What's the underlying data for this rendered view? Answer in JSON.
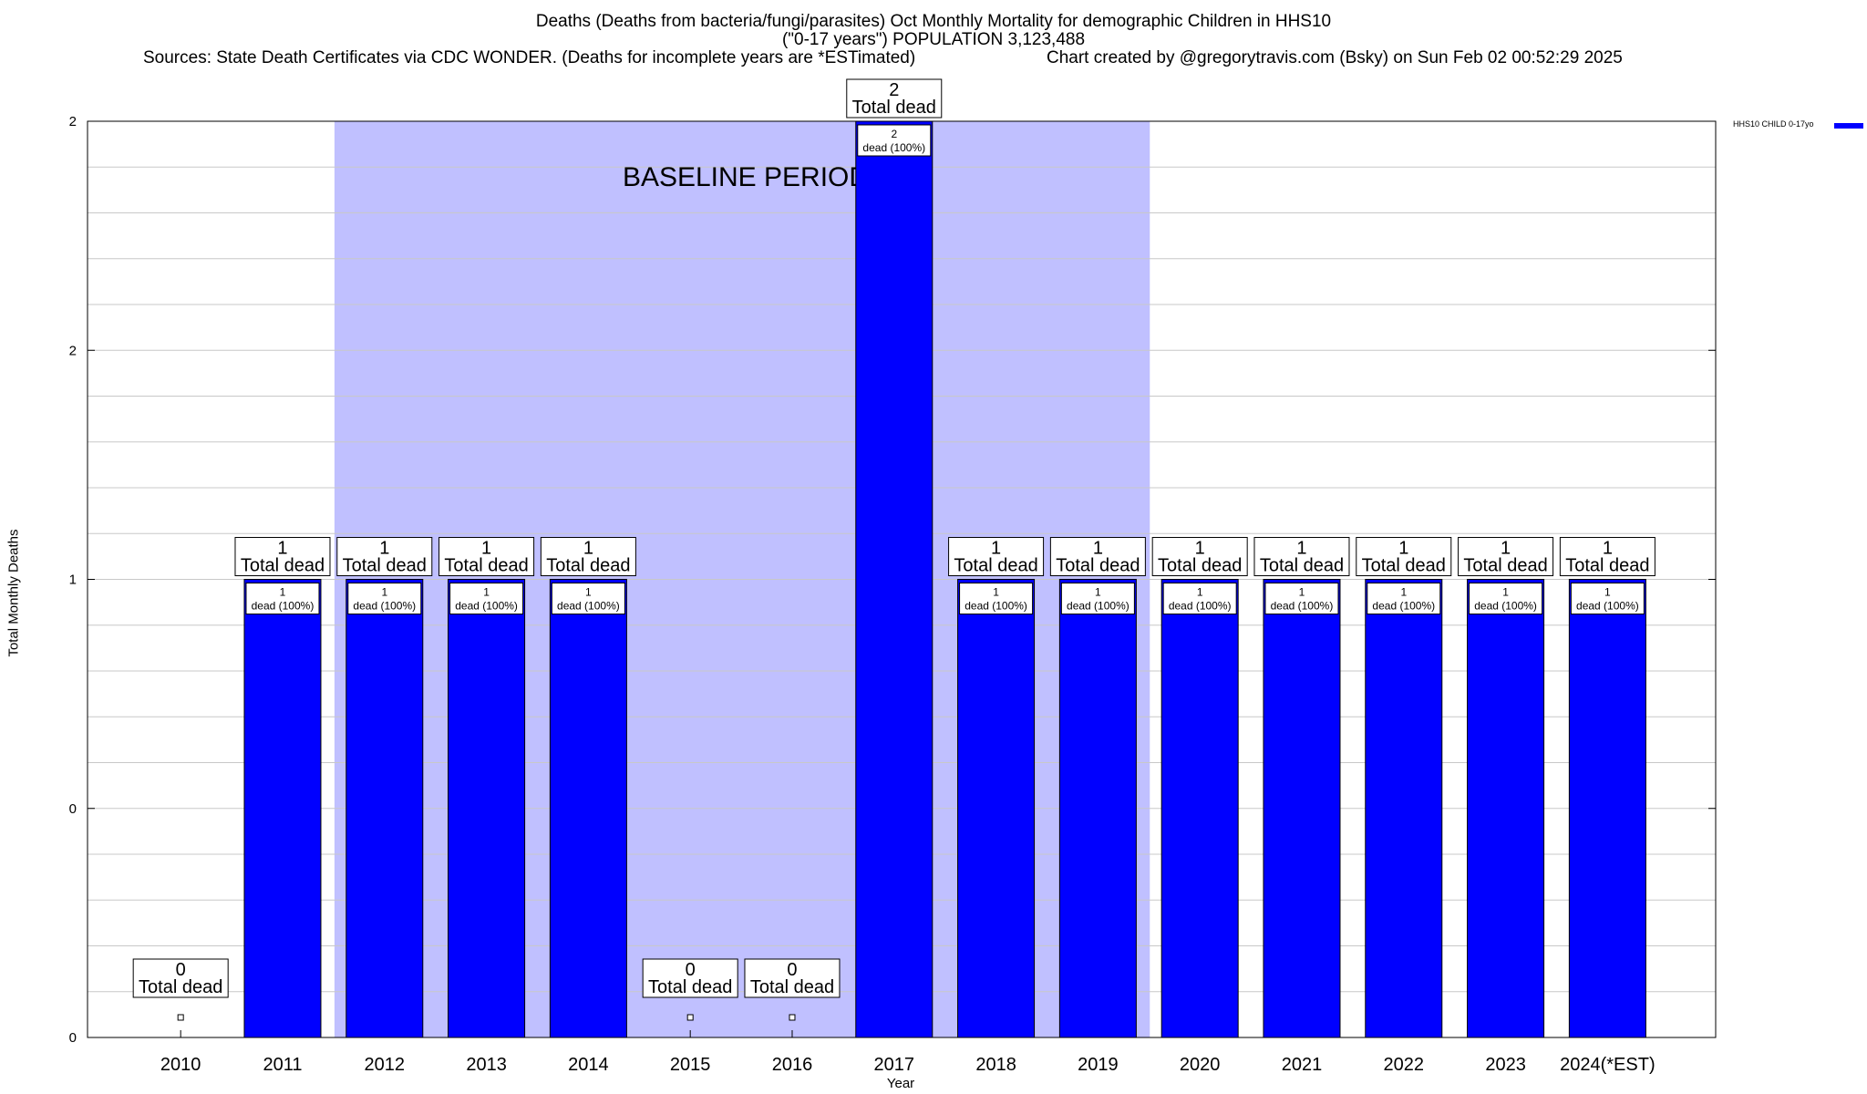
{
  "chart_data": {
    "type": "bar",
    "title_lines": [
      "Deaths (Deaths from bacteria/fungi/parasites) Oct Monthly Mortality for demographic Children in HHS10",
      "(\"0-17 years\") POPULATION 3,123,488"
    ],
    "sources": "Sources: State Death Certificates via CDC WONDER. (Deaths for incomplete years are *ESTimated)",
    "credit": "Chart created by @gregorytravis.com (Bsky) on Sun Feb 02 00:52:29 2025",
    "xlabel": "Year",
    "ylabel": "Total Monthly Deaths",
    "categories": [
      "2010",
      "2011",
      "2012",
      "2013",
      "2014",
      "2015",
      "2016",
      "2017",
      "2018",
      "2019",
      "2020",
      "2021",
      "2022",
      "2023",
      "2024(*EST)"
    ],
    "series": [
      {
        "name": "HHS10 CHILD 0-17yo",
        "values": [
          0,
          1,
          1,
          1,
          1,
          0,
          0,
          2,
          1,
          1,
          1,
          1,
          1,
          1,
          1
        ]
      }
    ],
    "ytick_labels": [
      "0",
      "0",
      "1",
      "2",
      "2"
    ],
    "ylim": [
      0,
      2
    ],
    "baseline_label": "BASELINE PERIOD",
    "baseline_range": [
      "2012",
      "2019"
    ],
    "total_label_suffix": "Total dead",
    "inner_label_suffix": "dead (100%)",
    "grid": true,
    "legend_position": "top-right",
    "colors": {
      "bar": "#0000ff",
      "baseline_shade": "#c0c0ff",
      "grid": "#c8c8c8"
    }
  }
}
